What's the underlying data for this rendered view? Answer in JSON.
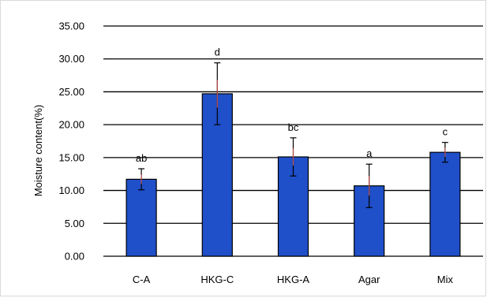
{
  "chart_data": {
    "type": "bar",
    "ylabel": "Moisture content(%)",
    "ylim": [
      0,
      35
    ],
    "yticks": [
      "0.00",
      "5.00",
      "10.00",
      "15.00",
      "20.00",
      "25.00",
      "30.00",
      "35.00"
    ],
    "grid": true,
    "categories": [
      "C-A",
      "HKG-C",
      "HKG-A",
      "Agar",
      "Mix"
    ],
    "values": [
      11.7,
      24.7,
      15.1,
      10.7,
      15.8
    ],
    "error": [
      1.6,
      4.7,
      2.9,
      3.3,
      1.5
    ],
    "significance": [
      "ab",
      "d",
      "bc",
      "a",
      "c"
    ]
  },
  "colors": {
    "bar_fill": "#1f4fc9",
    "bar_stroke": "#000000",
    "grid": "#000000",
    "error_bar": "#000000",
    "error_center": "#c0504d"
  }
}
